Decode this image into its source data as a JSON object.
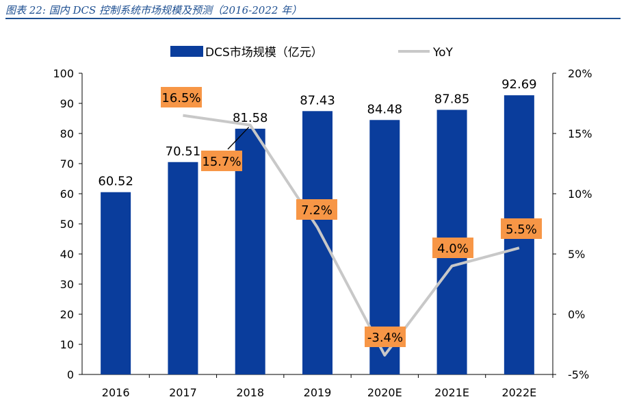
{
  "header": {
    "title": "图表 22: 国内 DCS 控制系统市场规模及预测（2016-2022 年）"
  },
  "colors": {
    "bar": "#0a3d9c",
    "line": "#c8c8c8",
    "yoy_label_bg": "#f79646",
    "axis": "#000000",
    "title": "#1d4f91"
  },
  "chart_data": {
    "type": "bar",
    "categories": [
      "2016",
      "2017",
      "2018",
      "2019",
      "2020E",
      "2021E",
      "2022E"
    ],
    "series": [
      {
        "name": "DCS市场规模（亿元）",
        "type": "bar",
        "axis": "left",
        "values": [
          60.52,
          70.51,
          81.58,
          87.43,
          84.48,
          87.85,
          92.69
        ],
        "labels": [
          "60.52",
          "70.51",
          "81.58",
          "87.43",
          "84.48",
          "87.85",
          "92.69"
        ]
      },
      {
        "name": "YoY",
        "type": "line",
        "axis": "right",
        "values": [
          null,
          16.5,
          15.7,
          7.2,
          -3.4,
          4.0,
          5.5
        ],
        "labels": [
          null,
          "16.5%",
          "15.7%",
          "7.2%",
          "-3.4%",
          "4.0%",
          "5.5%"
        ]
      }
    ],
    "ylim_left": [
      0,
      100
    ],
    "yticks_left": [
      "0",
      "10",
      "20",
      "30",
      "40",
      "50",
      "60",
      "70",
      "80",
      "90",
      "100"
    ],
    "ylim_right": [
      -5,
      20
    ],
    "yticks_right": [
      "-5%",
      "0%",
      "5%",
      "10%",
      "15%",
      "20%"
    ],
    "grid": false,
    "legend_position": "top"
  }
}
